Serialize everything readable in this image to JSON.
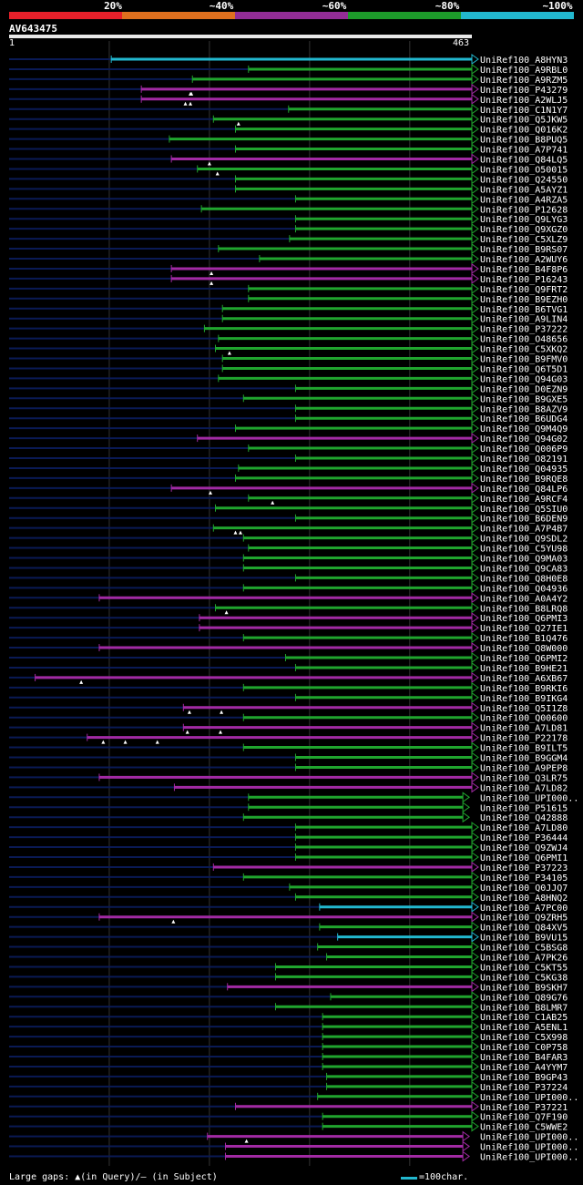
{
  "header": {
    "scale_labels": [
      "20%",
      "~40%",
      "~60%",
      "~80%",
      "~100%"
    ],
    "band_colors": [
      "#e8202a",
      "#e0701e",
      "#932d96",
      "#1d9a2a",
      "#22b8cf"
    ],
    "query_id": "AV643475",
    "ruler_start": "1",
    "ruler_end": "463"
  },
  "legend": {
    "gaps_text": "Large gaps: ▲(in Query)/– (in Subject)",
    "scale_text": "=100char."
  },
  "chart_data": {
    "type": "alignment-overview",
    "query_length": 463,
    "identity_colors": {
      "~40": "#d65e1c",
      "~60": "#a22aa4",
      "~80": "#20a52e",
      "~100": "#22b8cf"
    },
    "hits": [
      {
        "label": "UniRef100_A8HYN3",
        "start": 103,
        "end": 463,
        "identity": "~100"
      },
      {
        "label": "UniRef100_A9RBL0",
        "start": 240,
        "end": 463,
        "identity": "~80"
      },
      {
        "label": "UniRef100_A9RZM5",
        "start": 184,
        "end": 463,
        "identity": "~80"
      },
      {
        "label": "UniRef100_P43279",
        "start": 133,
        "end": 463,
        "identity": "~60",
        "query_gaps": [
          182,
          183
        ]
      },
      {
        "label": "UniRef100_A2WLJ5",
        "start": 133,
        "end": 463,
        "identity": "~60",
        "query_gaps": [
          177,
          182
        ]
      },
      {
        "label": "UniRef100_C1N1Y7",
        "start": 280,
        "end": 463,
        "identity": "~80"
      },
      {
        "label": "UniRef100_Q5JKW5",
        "start": 205,
        "end": 463,
        "identity": "~80",
        "query_gaps": [
          230
        ]
      },
      {
        "label": "UniRef100_Q016K2",
        "start": 227,
        "end": 463,
        "identity": "~80"
      },
      {
        "label": "UniRef100_B8PUQ5",
        "start": 161,
        "end": 463,
        "identity": "~80"
      },
      {
        "label": "UniRef100_A7P741",
        "start": 227,
        "end": 463,
        "identity": "~80"
      },
      {
        "label": "UniRef100_Q84LQ5",
        "start": 163,
        "end": 463,
        "identity": "~60",
        "query_gaps": [
          201
        ]
      },
      {
        "label": "UniRef100_O50015",
        "start": 189,
        "end": 463,
        "identity": "~80",
        "query_gaps": [
          209
        ]
      },
      {
        "label": "UniRef100_Q24550",
        "start": 227,
        "end": 463,
        "identity": "~80"
      },
      {
        "label": "UniRef100_A5AYZ1",
        "start": 227,
        "end": 463,
        "identity": "~80"
      },
      {
        "label": "UniRef100_A4RZA5",
        "start": 287,
        "end": 463,
        "identity": "~80"
      },
      {
        "label": "UniRef100_P12628",
        "start": 193,
        "end": 463,
        "identity": "~80"
      },
      {
        "label": "UniRef100_Q9LYG3",
        "start": 287,
        "end": 463,
        "identity": "~80"
      },
      {
        "label": "UniRef100_Q9XGZ0",
        "start": 287,
        "end": 463,
        "identity": "~80"
      },
      {
        "label": "UniRef100_C5XLZ9",
        "start": 281,
        "end": 463,
        "identity": "~80"
      },
      {
        "label": "UniRef100_B9RS07",
        "start": 210,
        "end": 463,
        "identity": "~80"
      },
      {
        "label": "UniRef100_A2WUY6",
        "start": 251,
        "end": 463,
        "identity": "~80"
      },
      {
        "label": "UniRef100_B4F8P6",
        "start": 163,
        "end": 463,
        "identity": "~60",
        "query_gaps": [
          203
        ]
      },
      {
        "label": "UniRef100_P16243",
        "start": 163,
        "end": 463,
        "identity": "~60",
        "query_gaps": [
          203
        ]
      },
      {
        "label": "UniRef100_Q9FRT2",
        "start": 240,
        "end": 463,
        "identity": "~80"
      },
      {
        "label": "UniRef100_B9EZH0",
        "start": 240,
        "end": 463,
        "identity": "~80"
      },
      {
        "label": "UniRef100_B6TVG1",
        "start": 214,
        "end": 463,
        "identity": "~80"
      },
      {
        "label": "UniRef100_A9LIN4",
        "start": 214,
        "end": 463,
        "identity": "~80"
      },
      {
        "label": "UniRef100_P37222",
        "start": 196,
        "end": 463,
        "identity": "~80"
      },
      {
        "label": "UniRef100_O48656",
        "start": 210,
        "end": 463,
        "identity": "~80"
      },
      {
        "label": "UniRef100_C5XKQ2",
        "start": 207,
        "end": 463,
        "identity": "~80",
        "query_gaps": [
          221
        ]
      },
      {
        "label": "UniRef100_B9FMV0",
        "start": 214,
        "end": 463,
        "identity": "~80"
      },
      {
        "label": "UniRef100_Q6T5D1",
        "start": 214,
        "end": 463,
        "identity": "~80"
      },
      {
        "label": "UniRef100_Q94G03",
        "start": 210,
        "end": 463,
        "identity": "~80"
      },
      {
        "label": "UniRef100_D0EZN9",
        "start": 287,
        "end": 463,
        "identity": "~80"
      },
      {
        "label": "UniRef100_B9GXE5",
        "start": 235,
        "end": 463,
        "identity": "~80"
      },
      {
        "label": "UniRef100_B8AZV9",
        "start": 287,
        "end": 463,
        "identity": "~80"
      },
      {
        "label": "UniRef100_B6UDG4",
        "start": 287,
        "end": 463,
        "identity": "~80"
      },
      {
        "label": "UniRef100_Q9M4Q9",
        "start": 227,
        "end": 463,
        "identity": "~80"
      },
      {
        "label": "UniRef100_Q94G02",
        "start": 189,
        "end": 463,
        "identity": "~60"
      },
      {
        "label": "UniRef100_Q006P9",
        "start": 240,
        "end": 463,
        "identity": "~80"
      },
      {
        "label": "UniRef100_O82191",
        "start": 287,
        "end": 463,
        "identity": "~80"
      },
      {
        "label": "UniRef100_Q04935",
        "start": 230,
        "end": 463,
        "identity": "~80"
      },
      {
        "label": "UniRef100_B9RQE8",
        "start": 227,
        "end": 463,
        "identity": "~80"
      },
      {
        "label": "UniRef100_Q84LP6",
        "start": 163,
        "end": 463,
        "identity": "~60",
        "query_gaps": [
          202
        ]
      },
      {
        "label": "UniRef100_A9RCF4",
        "start": 240,
        "end": 463,
        "identity": "~80",
        "query_gaps": [
          264
        ]
      },
      {
        "label": "UniRef100_Q5SIU0",
        "start": 207,
        "end": 463,
        "identity": "~80"
      },
      {
        "label": "UniRef100_B6DEN9",
        "start": 287,
        "end": 463,
        "identity": "~80"
      },
      {
        "label": "UniRef100_A7P4B7",
        "start": 205,
        "end": 463,
        "identity": "~80",
        "query_gaps": [
          227,
          232
        ]
      },
      {
        "label": "UniRef100_Q9SDL2",
        "start": 235,
        "end": 463,
        "identity": "~80"
      },
      {
        "label": "UniRef100_C5YU98",
        "start": 240,
        "end": 463,
        "identity": "~80"
      },
      {
        "label": "UniRef100_Q9MA03",
        "start": 235,
        "end": 463,
        "identity": "~80"
      },
      {
        "label": "UniRef100_Q9CA83",
        "start": 235,
        "end": 463,
        "identity": "~80"
      },
      {
        "label": "UniRef100_Q8H0E8",
        "start": 287,
        "end": 463,
        "identity": "~80"
      },
      {
        "label": "UniRef100_Q04936",
        "start": 235,
        "end": 463,
        "identity": "~80"
      },
      {
        "label": "UniRef100_A0A4Y2",
        "start": 91,
        "end": 463,
        "identity": "~60"
      },
      {
        "label": "UniRef100_B8LRQ8",
        "start": 207,
        "end": 463,
        "identity": "~80",
        "query_gaps": [
          218
        ]
      },
      {
        "label": "UniRef100_Q6PMI3",
        "start": 191,
        "end": 463,
        "identity": "~60"
      },
      {
        "label": "UniRef100_Q27IE1",
        "start": 191,
        "end": 463,
        "identity": "~60"
      },
      {
        "label": "UniRef100_B1Q476",
        "start": 235,
        "end": 463,
        "identity": "~80"
      },
      {
        "label": "UniRef100_Q8W000",
        "start": 91,
        "end": 463,
        "identity": "~60"
      },
      {
        "label": "UniRef100_Q6PMI2",
        "start": 277,
        "end": 463,
        "identity": "~80"
      },
      {
        "label": "UniRef100_B9HE21",
        "start": 287,
        "end": 463,
        "identity": "~80"
      },
      {
        "label": "UniRef100_A6XB67",
        "start": 27,
        "end": 463,
        "identity": "~60",
        "query_gaps": [
          73
        ]
      },
      {
        "label": "UniRef100_B9RKI6",
        "start": 235,
        "end": 463,
        "identity": "~80"
      },
      {
        "label": "UniRef100_B9IKG4",
        "start": 287,
        "end": 463,
        "identity": "~80"
      },
      {
        "label": "UniRef100_Q5I1Z8",
        "start": 175,
        "end": 463,
        "identity": "~60",
        "query_gaps": [
          181,
          213
        ]
      },
      {
        "label": "UniRef100_Q00600",
        "start": 235,
        "end": 463,
        "identity": "~80"
      },
      {
        "label": "UniRef100_A7LD81",
        "start": 175,
        "end": 463,
        "identity": "~60",
        "query_gaps": [
          179,
          212
        ]
      },
      {
        "label": "UniRef100_P22178",
        "start": 79,
        "end": 463,
        "identity": "~60",
        "query_gaps": [
          95,
          117,
          149
        ]
      },
      {
        "label": "UniRef100_B9ILT5",
        "start": 235,
        "end": 463,
        "identity": "~80"
      },
      {
        "label": "UniRef100_B9GGM4",
        "start": 287,
        "end": 463,
        "identity": "~80"
      },
      {
        "label": "UniRef100_A9PEP8",
        "start": 287,
        "end": 463,
        "identity": "~80"
      },
      {
        "label": "UniRef100_Q3LR75",
        "start": 91,
        "end": 463,
        "identity": "~60"
      },
      {
        "label": "UniRef100_A7LD82",
        "start": 166,
        "end": 463,
        "identity": "~60"
      },
      {
        "label": "UniRef100_UPI000..",
        "start": 240,
        "end": 454,
        "identity": "~80"
      },
      {
        "label": "UniRef100_P51615",
        "start": 240,
        "end": 454,
        "identity": "~80"
      },
      {
        "label": "UniRef100_Q42888",
        "start": 235,
        "end": 454,
        "identity": "~80"
      },
      {
        "label": "UniRef100_A7LD80",
        "start": 287,
        "end": 463,
        "identity": "~80"
      },
      {
        "label": "UniRef100_P36444",
        "start": 287,
        "end": 463,
        "identity": "~80"
      },
      {
        "label": "UniRef100_Q9ZWJ4",
        "start": 287,
        "end": 463,
        "identity": "~80"
      },
      {
        "label": "UniRef100_Q6PMI1",
        "start": 287,
        "end": 463,
        "identity": "~80"
      },
      {
        "label": "UniRef100_P37223",
        "start": 205,
        "end": 463,
        "identity": "~60"
      },
      {
        "label": "UniRef100_P34105",
        "start": 235,
        "end": 463,
        "identity": "~80"
      },
      {
        "label": "UniRef100_Q0JJQ7",
        "start": 281,
        "end": 463,
        "identity": "~80"
      },
      {
        "label": "UniRef100_A8HNQ2",
        "start": 287,
        "end": 463,
        "identity": "~80"
      },
      {
        "label": "UniRef100_A7PC00",
        "start": 311,
        "end": 463,
        "identity": "~100"
      },
      {
        "label": "UniRef100_Q9ZRH5",
        "start": 91,
        "end": 463,
        "identity": "~60",
        "query_gaps": [
          165
        ]
      },
      {
        "label": "UniRef100_Q84XV5",
        "start": 311,
        "end": 463,
        "identity": "~80"
      },
      {
        "label": "UniRef100_B9VU15",
        "start": 329,
        "end": 463,
        "identity": "~100"
      },
      {
        "label": "UniRef100_C5BSG8",
        "start": 309,
        "end": 463,
        "identity": "~80"
      },
      {
        "label": "UniRef100_A7PK26",
        "start": 318,
        "end": 463,
        "identity": "~80"
      },
      {
        "label": "UniRef100_C5KT55",
        "start": 267,
        "end": 463,
        "identity": "~80"
      },
      {
        "label": "UniRef100_C5KG38",
        "start": 267,
        "end": 463,
        "identity": "~80"
      },
      {
        "label": "UniRef100_B9SKH7",
        "start": 219,
        "end": 463,
        "identity": "~60"
      },
      {
        "label": "UniRef100_Q89G76",
        "start": 322,
        "end": 463,
        "identity": "~80"
      },
      {
        "label": "UniRef100_B8LMR7",
        "start": 267,
        "end": 463,
        "identity": "~80"
      },
      {
        "label": "UniRef100_C1AB25",
        "start": 314,
        "end": 463,
        "identity": "~80"
      },
      {
        "label": "UniRef100_A5ENL1",
        "start": 314,
        "end": 463,
        "identity": "~80"
      },
      {
        "label": "UniRef100_C5X998",
        "start": 314,
        "end": 463,
        "identity": "~80"
      },
      {
        "label": "UniRef100_C0P758",
        "start": 314,
        "end": 463,
        "identity": "~80"
      },
      {
        "label": "UniRef100_B4FAR3",
        "start": 314,
        "end": 463,
        "identity": "~80"
      },
      {
        "label": "UniRef100_A4YYM7",
        "start": 314,
        "end": 463,
        "identity": "~80"
      },
      {
        "label": "UniRef100_B9GP43",
        "start": 318,
        "end": 463,
        "identity": "~80"
      },
      {
        "label": "UniRef100_P37224",
        "start": 318,
        "end": 463,
        "identity": "~80"
      },
      {
        "label": "UniRef100_UPI000..",
        "start": 309,
        "end": 463,
        "identity": "~80"
      },
      {
        "label": "UniRef100_P37221",
        "start": 227,
        "end": 463,
        "identity": "~60"
      },
      {
        "label": "UniRef100_Q7F190",
        "start": 314,
        "end": 463,
        "identity": "~80"
      },
      {
        "label": "UniRef100_C5WWE2",
        "start": 314,
        "end": 463,
        "identity": "~80"
      },
      {
        "label": "UniRef100_UPI000..",
        "start": 199,
        "end": 454,
        "identity": "~60",
        "query_gaps": [
          238
        ]
      },
      {
        "label": "UniRef100_UPI000..",
        "start": 217,
        "end": 454,
        "identity": "~60"
      },
      {
        "label": "UniRef100_UPI000..",
        "start": 217,
        "end": 454,
        "identity": "~60"
      }
    ]
  }
}
